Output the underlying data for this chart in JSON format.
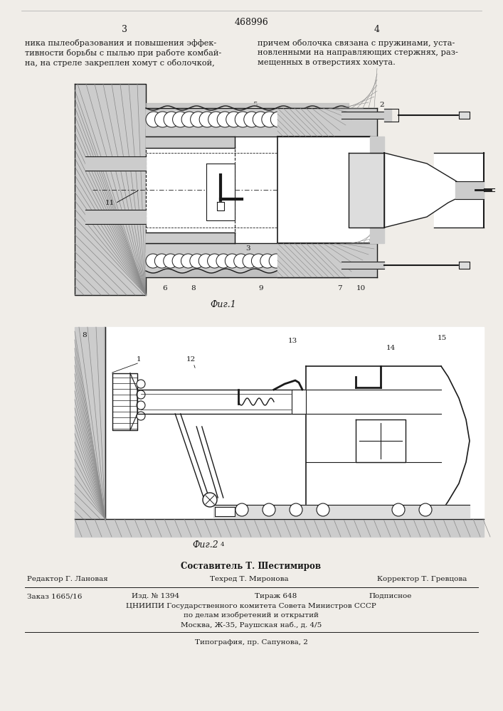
{
  "patent_number": "468996",
  "page_left": "3",
  "page_right": "4",
  "text_left": "ника пылеобразования и повышения эффек-\nтивности борьбы с пылью при работе комбай-\nна, на стреле закреплен хомут с оболочкой,",
  "text_right": "причем оболочка связана с пружинами, уста-\nновленными на направляющих стержнях, раз-\nмещенных в отверстиях хомута.",
  "fig1_caption": "Фиг.1",
  "fig2_caption": "Фиг.2",
  "footer_compiler": "Составитель Т. Шестимиров",
  "footer_editor": "Редактор Г. Лановая",
  "footer_techred": "Техред Т. Миронова",
  "footer_corrector": "Корректор Т. Гревцова",
  "footer_order": "Заказ 1665/16",
  "footer_issue": "Изд. № 1394",
  "footer_circulation": "Тираж 648",
  "footer_subscription": "Подписное",
  "footer_org1": "ЦНИИПИ Государственного комитета Совета Министров СССР",
  "footer_org2": "по делам изобретений и открытий",
  "footer_org3": "Москва, Ж-35, Раушская наб., д. 4/5",
  "footer_print": "Типография, пр. Сапунова, 2",
  "bg_color": "#f0ede8",
  "line_color": "#1a1a1a",
  "hatch_color": "#555555",
  "text_color": "#1a1a1a"
}
